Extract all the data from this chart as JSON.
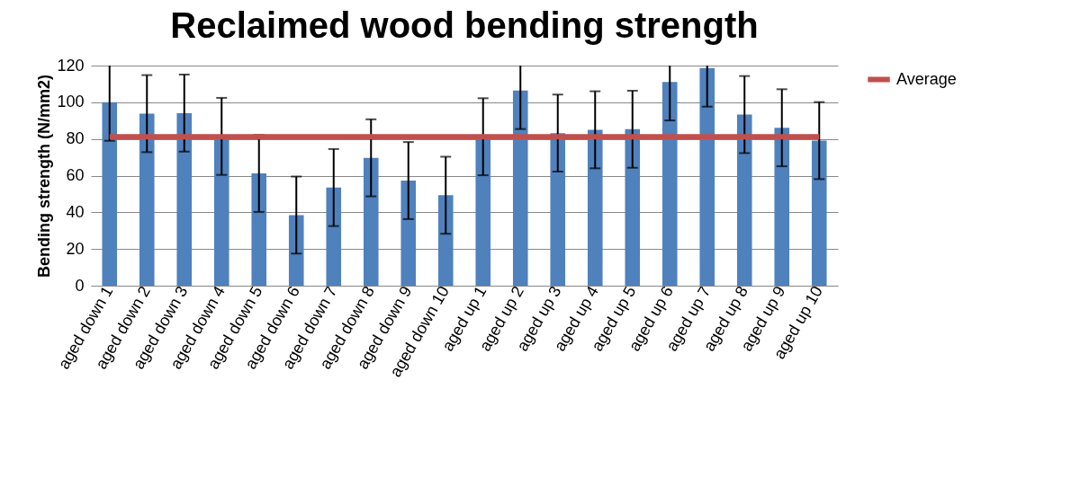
{
  "chart_data": {
    "type": "bar",
    "title": "Reclaimed wood bending strength",
    "ylabel": "Bending strength (N/mm2)",
    "categories": [
      "aged down 1",
      "aged down 2",
      "aged down 3",
      "aged down 4",
      "aged down 5",
      "aged down 6",
      "aged down 7",
      "aged down 8",
      "aged down 9",
      "aged down 10",
      "aged up 1",
      "aged up 2",
      "aged up 3",
      "aged up 4",
      "aged up 5",
      "aged up 6",
      "aged up 7",
      "aged up 8",
      "aged up 9",
      "aged up 10"
    ],
    "series": [
      {
        "color": "#4f81bd",
        "values": [
          100,
          93.8,
          94.1,
          81.4,
          61.2,
          38.5,
          53.5,
          69.7,
          57.3,
          49.3,
          81.2,
          106.4,
          83.2,
          85,
          85.3,
          111.1,
          118.6,
          93.3,
          86.1,
          79.1
        ],
        "errors": [
          [
            79,
            120
          ],
          21,
          21,
          21,
          21,
          21,
          21,
          21,
          21,
          21,
          21,
          [
            85.4,
            120
          ],
          21,
          21,
          21,
          [
            90.1,
            120
          ],
          [
            97.6,
            120
          ],
          21,
          21,
          21
        ]
      },
      {
        "type": "line",
        "name": "Average",
        "color": "#c0504d",
        "values": [
          81.2,
          81.2,
          81.2,
          81.2,
          81.2,
          81.2,
          81.2,
          81.2,
          81.2,
          81.2,
          81.2,
          81.2,
          81.2,
          81.2,
          81.2,
          81.2,
          81.2,
          81.2,
          81.2,
          81.2
        ]
      }
    ],
    "ylim": [
      0,
      120
    ],
    "yticks": [
      0,
      20,
      40,
      60,
      80,
      100,
      120
    ],
    "grid": "y",
    "legend": "right"
  }
}
